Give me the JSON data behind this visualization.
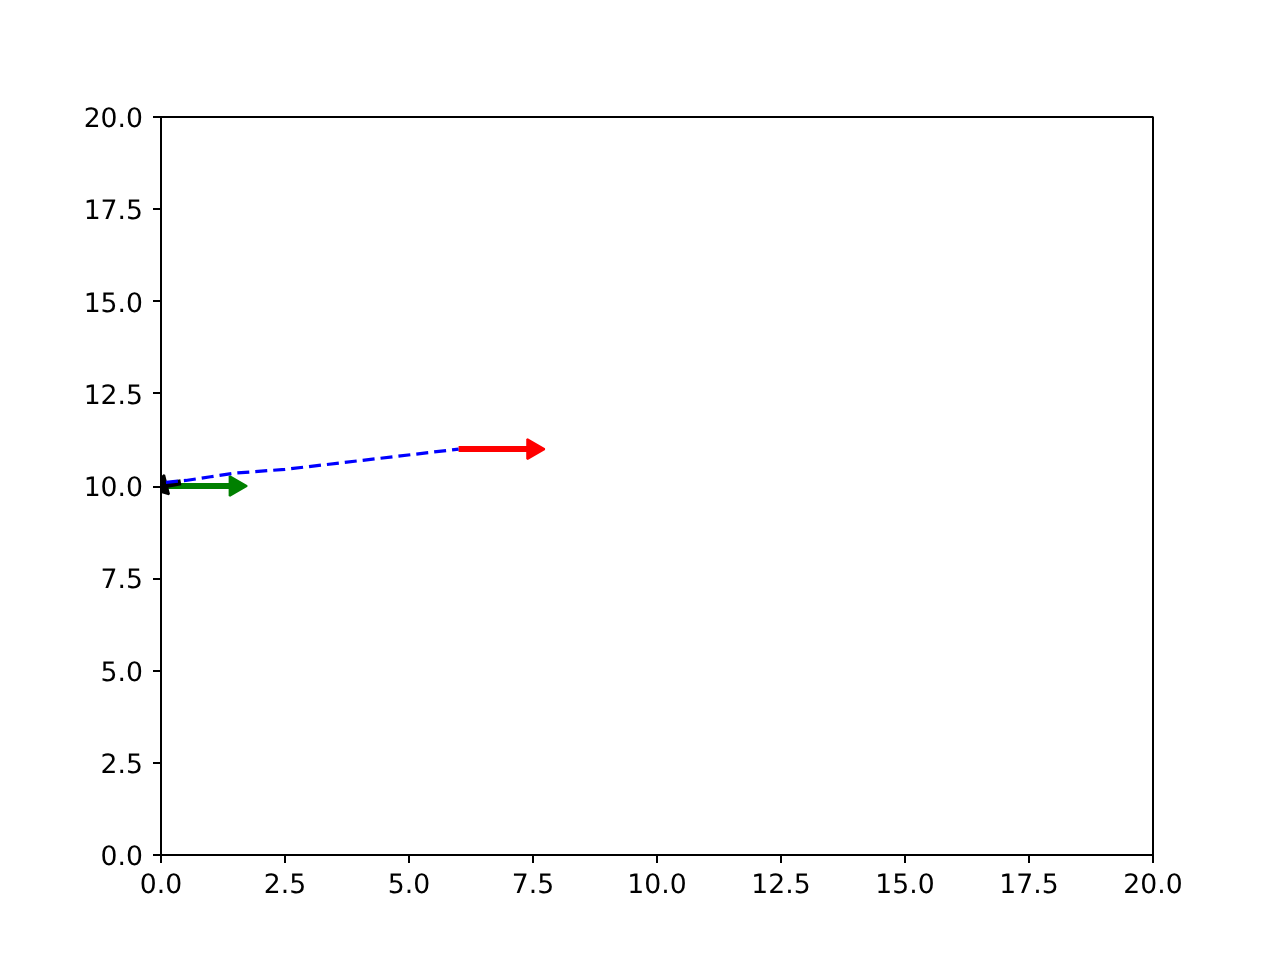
{
  "chart_data": {
    "type": "line",
    "xlim": [
      0,
      20
    ],
    "ylim": [
      0,
      20
    ],
    "xticks": [
      {
        "value": 0,
        "label": "0.0"
      },
      {
        "value": 2.5,
        "label": "2.5"
      },
      {
        "value": 5,
        "label": "5.0"
      },
      {
        "value": 7.5,
        "label": "7.5"
      },
      {
        "value": 10,
        "label": "10.0"
      },
      {
        "value": 12.5,
        "label": "12.5"
      },
      {
        "value": 15,
        "label": "15.0"
      },
      {
        "value": 17.5,
        "label": "17.5"
      },
      {
        "value": 20,
        "label": "20.0"
      }
    ],
    "yticks": [
      {
        "value": 0,
        "label": "0.0"
      },
      {
        "value": 2.5,
        "label": "2.5"
      },
      {
        "value": 5,
        "label": "5.0"
      },
      {
        "value": 7.5,
        "label": "7.5"
      },
      {
        "value": 10,
        "label": "10.0"
      },
      {
        "value": 12.5,
        "label": "12.5"
      },
      {
        "value": 15,
        "label": "15.0"
      },
      {
        "value": 17.5,
        "label": "17.5"
      },
      {
        "value": 20,
        "label": "20.0"
      }
    ],
    "grid": false,
    "line_style": "dashed",
    "series": [
      {
        "color": "#0000ff",
        "x": [
          0.1,
          0.5,
          1.0,
          1.5,
          2.5,
          6.0
        ],
        "values": [
          10.1,
          10.15,
          10.25,
          10.35,
          10.45,
          11.0
        ]
      },
      {
        "line_style": "solid",
        "marker": "triangle",
        "color": "#ff0000",
        "x": [
          6.0,
          7.5
        ],
        "values": [
          11.0,
          11.0
        ]
      },
      {
        "line_style": "solid",
        "marker": "triangle",
        "color": "#008000",
        "x": [
          0.0,
          1.5
        ],
        "values": [
          10.0,
          10.0
        ]
      },
      {
        "line_style": "solid",
        "marker": "triangle",
        "color": "#000000",
        "x": [
          0.4,
          0.0
        ],
        "values": [
          10.1,
          10.0
        ]
      }
    ]
  }
}
